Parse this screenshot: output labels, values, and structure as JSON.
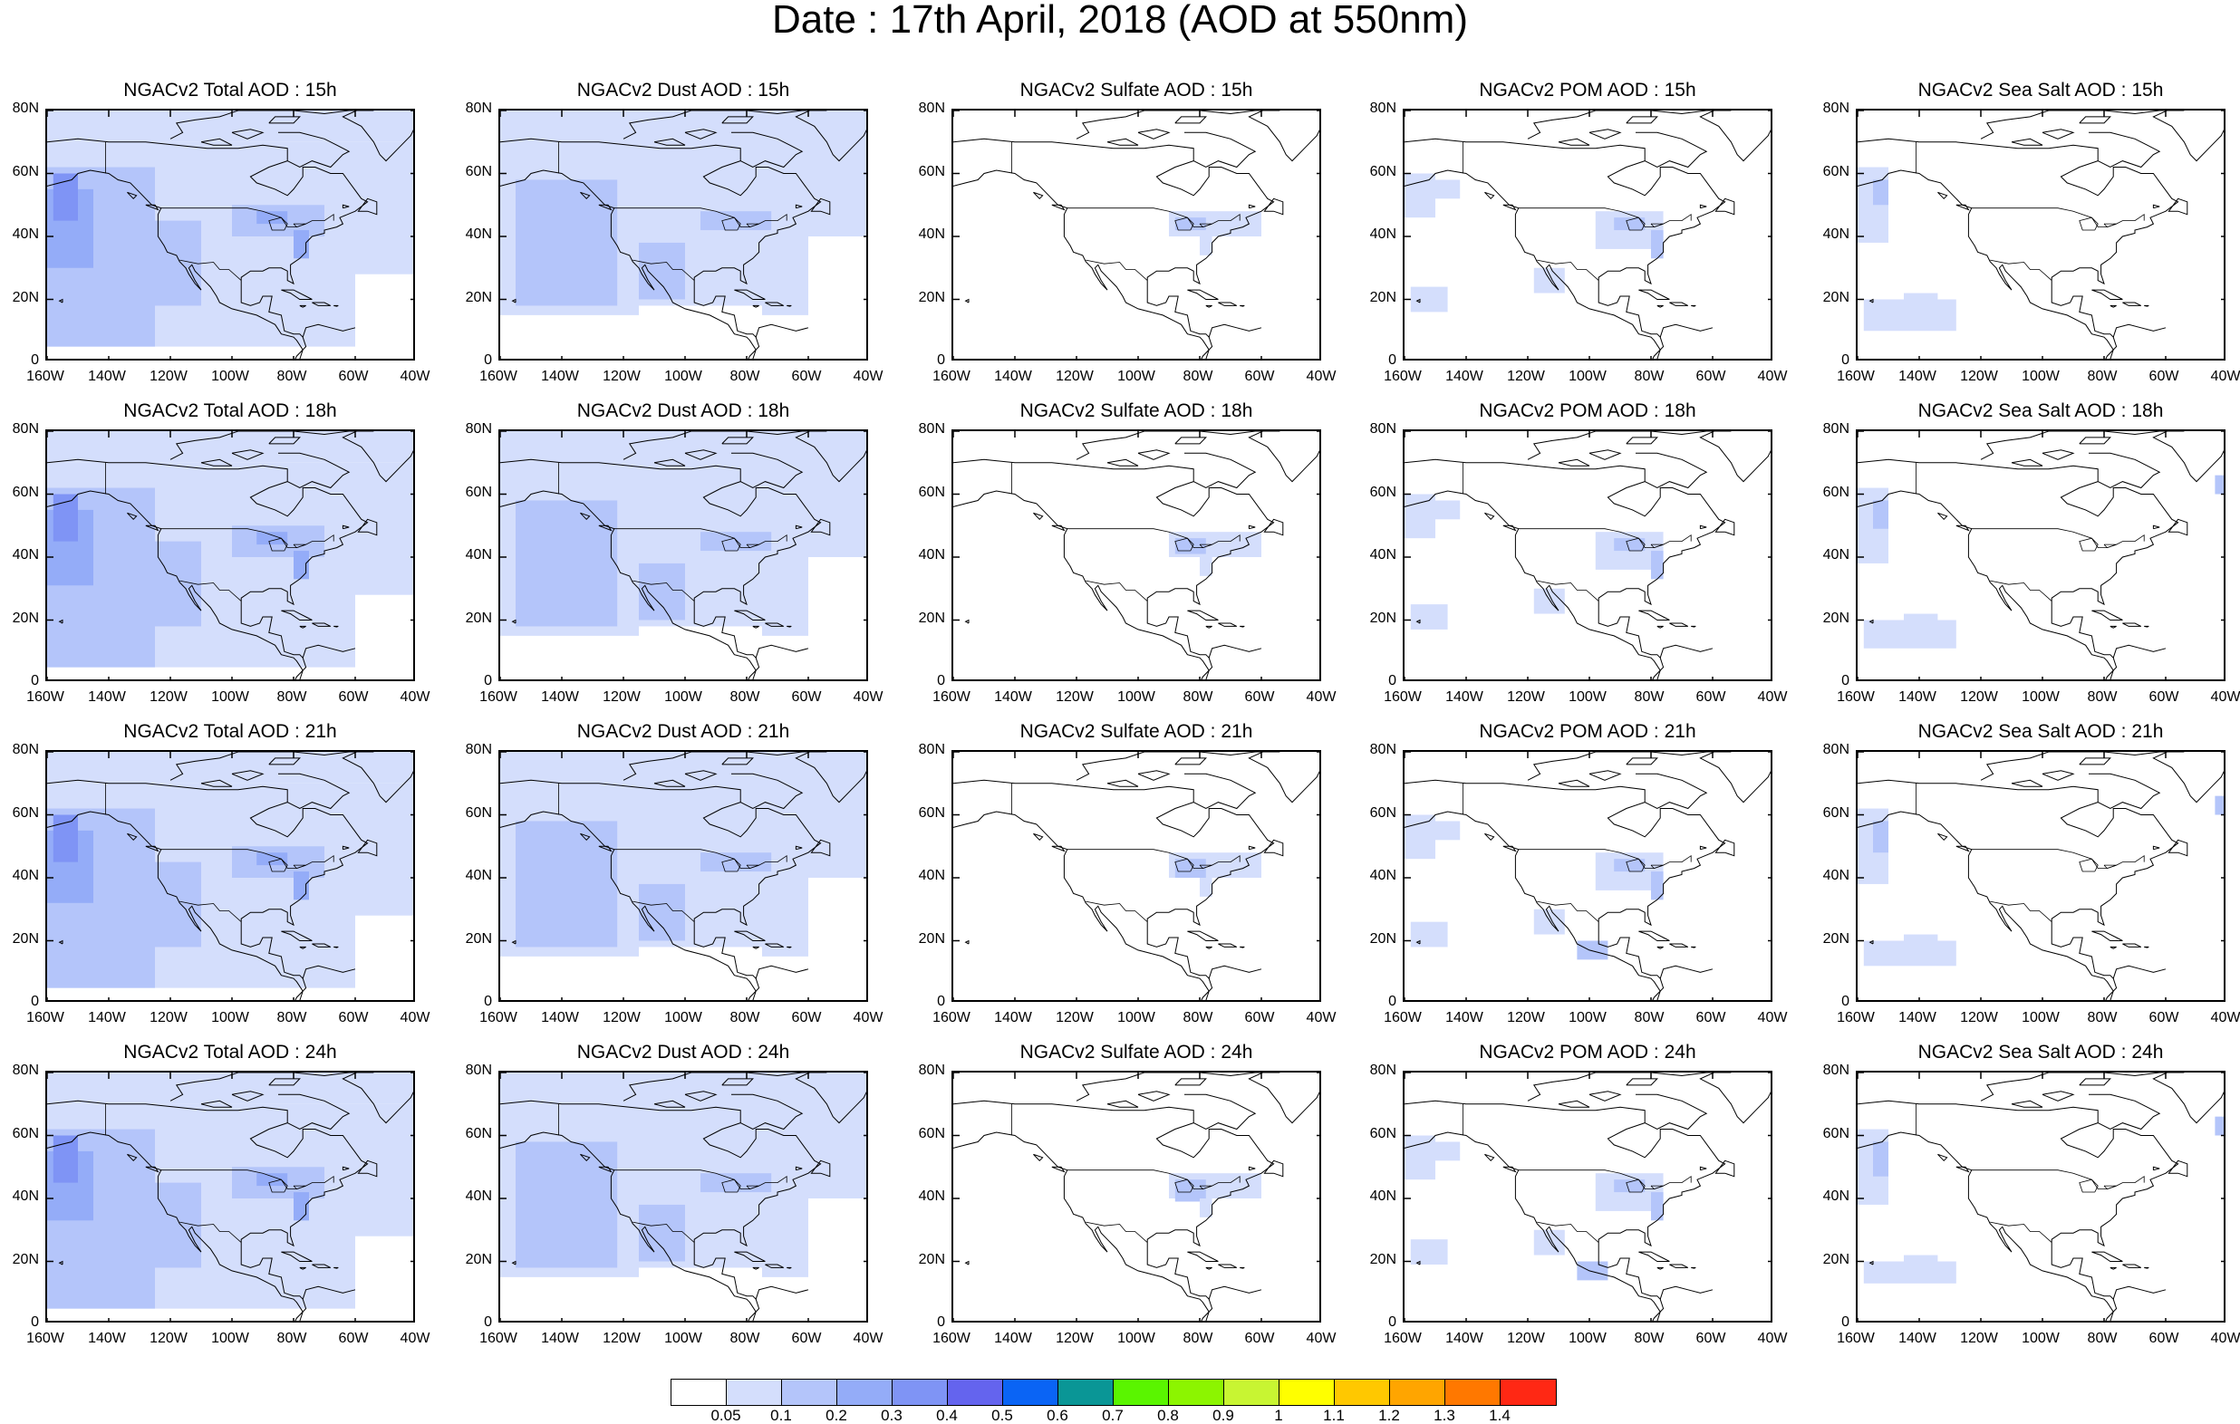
{
  "title": "Date : 17th April, 2018 (AOD at 550nm)",
  "map": {
    "y_tick_labels": [
      "0",
      "20N",
      "40N",
      "60N",
      "80N"
    ],
    "x_tick_labels": [
      "160W",
      "140W",
      "120W",
      "100W",
      "80W",
      "60W",
      "40W"
    ],
    "lat_range": [
      0,
      80
    ],
    "lon_range": [
      -160,
      -40
    ]
  },
  "panels": [
    [
      {
        "title": "NGACv2 Total AOD : 15h",
        "species": "total",
        "hour": 15
      },
      {
        "title": "NGACv2 Dust AOD : 15h",
        "species": "dust",
        "hour": 15
      },
      {
        "title": "NGACv2 Sulfate AOD : 15h",
        "species": "sulfate",
        "hour": 15
      },
      {
        "title": "NGACv2 POM AOD : 15h",
        "species": "pom",
        "hour": 15
      },
      {
        "title": "NGACv2 Sea Salt AOD : 15h",
        "species": "seasalt",
        "hour": 15
      }
    ],
    [
      {
        "title": "NGACv2 Total AOD : 18h",
        "species": "total",
        "hour": 18
      },
      {
        "title": "NGACv2 Dust AOD : 18h",
        "species": "dust",
        "hour": 18
      },
      {
        "title": "NGACv2 Sulfate AOD : 18h",
        "species": "sulfate",
        "hour": 18
      },
      {
        "title": "NGACv2 POM AOD : 18h",
        "species": "pom",
        "hour": 18
      },
      {
        "title": "NGACv2 Sea Salt AOD : 18h",
        "species": "seasalt",
        "hour": 18
      }
    ],
    [
      {
        "title": "NGACv2 Total AOD : 21h",
        "species": "total",
        "hour": 21
      },
      {
        "title": "NGACv2 Dust AOD : 21h",
        "species": "dust",
        "hour": 21
      },
      {
        "title": "NGACv2 Sulfate AOD : 21h",
        "species": "sulfate",
        "hour": 21
      },
      {
        "title": "NGACv2 POM AOD : 21h",
        "species": "pom",
        "hour": 21
      },
      {
        "title": "NGACv2 Sea Salt AOD : 21h",
        "species": "seasalt",
        "hour": 21
      }
    ],
    [
      {
        "title": "NGACv2 Total AOD : 24h",
        "species": "total",
        "hour": 24
      },
      {
        "title": "NGACv2 Dust AOD : 24h",
        "species": "dust",
        "hour": 24
      },
      {
        "title": "NGACv2 Sulfate AOD : 24h",
        "species": "sulfate",
        "hour": 24
      },
      {
        "title": "NGACv2 POM AOD : 24h",
        "species": "pom",
        "hour": 24
      },
      {
        "title": "NGACv2 Sea Salt  AOD : 24h",
        "species": "seasalt",
        "hour": 24
      }
    ]
  ],
  "colorbar": {
    "colors": [
      "#ffffff",
      "#d4defc",
      "#b4c5fa",
      "#94acf8",
      "#7f94f5",
      "#6464ee",
      "#0a64f5",
      "#0a9696",
      "#5af500",
      "#8cf500",
      "#c8f532",
      "#ffff00",
      "#ffc800",
      "#ffa500",
      "#ff7800",
      "#ff2814"
    ],
    "labels": [
      "0.05",
      "0.1",
      "0.2",
      "0.3",
      "0.4",
      "0.5",
      "0.6",
      "0.7",
      "0.8",
      "0.9",
      "1",
      "1.1",
      "1.2",
      "1.3",
      "1.4"
    ]
  }
}
